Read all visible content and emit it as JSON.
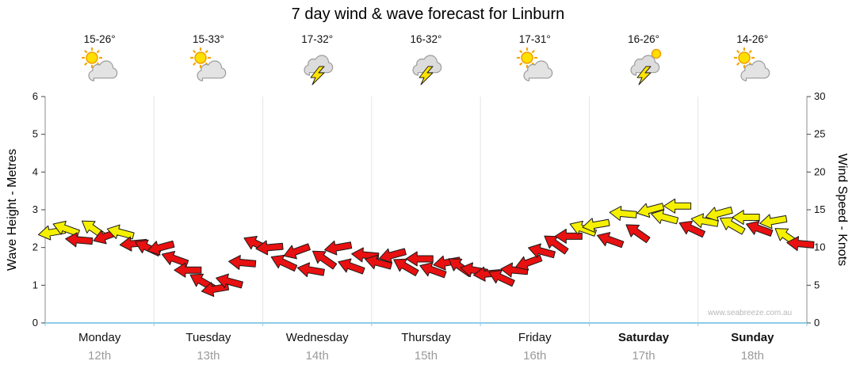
{
  "chart_data": {
    "type": "scatter",
    "marker": "wind-arrow",
    "title": "7 day wind & wave forecast for Linburn",
    "watermark": "www.seabreeze.com.au",
    "left_axis": {
      "label": "Wave Height - Metres",
      "min": 0,
      "max": 6,
      "ticks": [
        0,
        1,
        2,
        3,
        4,
        5,
        6
      ]
    },
    "right_axis": {
      "label": "Wind Speed - Knots",
      "min": 0,
      "max": 30,
      "ticks": [
        0,
        5,
        10,
        15,
        20,
        25,
        30
      ]
    },
    "baseline_color": "#8fcde8",
    "arrow_colors": {
      "y": "#f5f000",
      "r": "#e81010"
    },
    "days": [
      {
        "name": "Monday",
        "date": "12th",
        "temp": "15-26°",
        "icon": "sun-cloud",
        "bold": false
      },
      {
        "name": "Tuesday",
        "date": "13th",
        "temp": "15-33°",
        "icon": "sun-cloud",
        "bold": false
      },
      {
        "name": "Wednesday",
        "date": "14th",
        "temp": "17-32°",
        "icon": "storm",
        "bold": false
      },
      {
        "name": "Thursday",
        "date": "15th",
        "temp": "16-32°",
        "icon": "storm",
        "bold": false
      },
      {
        "name": "Friday",
        "date": "16th",
        "temp": "17-31°",
        "icon": "sun-cloud",
        "bold": false
      },
      {
        "name": "Saturday",
        "date": "17th",
        "temp": "16-26°",
        "icon": "sun-storm",
        "bold": true
      },
      {
        "name": "Sunday",
        "date": "18th",
        "temp": "14-26°",
        "icon": "sun-cloud",
        "bold": true
      }
    ],
    "point_format": [
      "day_index",
      "fraction_of_day",
      "wind_knots",
      "color_key",
      "arrow_angle_deg"
    ],
    "points": [
      [
        0,
        0.06,
        12,
        "y",
        170
      ],
      [
        0,
        0.19,
        12.5,
        "y",
        200
      ],
      [
        0,
        0.31,
        11,
        "r",
        185
      ],
      [
        0,
        0.44,
        12.5,
        "y",
        215
      ],
      [
        0,
        0.56,
        11.5,
        "r",
        160
      ],
      [
        0,
        0.69,
        12,
        "y",
        195
      ],
      [
        0,
        0.81,
        10.5,
        "r",
        175
      ],
      [
        0,
        0.94,
        10,
        "r",
        205
      ],
      [
        1,
        0.06,
        10,
        "r",
        165
      ],
      [
        1,
        0.19,
        8.5,
        "r",
        200
      ],
      [
        1,
        0.31,
        7,
        "r",
        180
      ],
      [
        1,
        0.44,
        5.5,
        "r",
        210
      ],
      [
        1,
        0.56,
        4.5,
        "r",
        170
      ],
      [
        1,
        0.69,
        5.5,
        "r",
        195
      ],
      [
        1,
        0.81,
        8,
        "r",
        185
      ],
      [
        1,
        0.94,
        10.5,
        "r",
        205
      ],
      [
        2,
        0.06,
        10,
        "r",
        175
      ],
      [
        2,
        0.19,
        8,
        "r",
        205
      ],
      [
        2,
        0.31,
        9.5,
        "r",
        160
      ],
      [
        2,
        0.44,
        7,
        "r",
        190
      ],
      [
        2,
        0.56,
        8.5,
        "r",
        215
      ],
      [
        2,
        0.69,
        10,
        "r",
        170
      ],
      [
        2,
        0.81,
        7.5,
        "r",
        200
      ],
      [
        2,
        0.94,
        9,
        "r",
        185
      ],
      [
        3,
        0.06,
        8,
        "r",
        195
      ],
      [
        3,
        0.19,
        9,
        "r",
        165
      ],
      [
        3,
        0.31,
        7.5,
        "r",
        210
      ],
      [
        3,
        0.44,
        8.5,
        "r",
        180
      ],
      [
        3,
        0.56,
        7,
        "r",
        200
      ],
      [
        3,
        0.69,
        8,
        "r",
        170
      ],
      [
        3,
        0.81,
        7.5,
        "r",
        215
      ],
      [
        3,
        0.94,
        7,
        "r",
        190
      ],
      [
        4,
        0.06,
        6.5,
        "r",
        175
      ],
      [
        4,
        0.19,
        6,
        "r",
        205
      ],
      [
        4,
        0.31,
        7,
        "r",
        185
      ],
      [
        4,
        0.44,
        8,
        "r",
        160
      ],
      [
        4,
        0.56,
        9.5,
        "r",
        195
      ],
      [
        4,
        0.69,
        10.5,
        "r",
        215
      ],
      [
        4,
        0.81,
        11.5,
        "r",
        180
      ],
      [
        4,
        0.94,
        12.5,
        "y",
        200
      ],
      [
        5,
        0.06,
        13,
        "y",
        170
      ],
      [
        5,
        0.19,
        11,
        "r",
        200
      ],
      [
        5,
        0.31,
        14.5,
        "y",
        185
      ],
      [
        5,
        0.44,
        12,
        "r",
        215
      ],
      [
        5,
        0.56,
        15,
        "y",
        165
      ],
      [
        5,
        0.69,
        14,
        "y",
        195
      ],
      [
        5,
        0.81,
        15.5,
        "y",
        180
      ],
      [
        5,
        0.94,
        12.5,
        "r",
        205
      ],
      [
        6,
        0.06,
        13.5,
        "y",
        190
      ],
      [
        6,
        0.19,
        14.5,
        "y",
        165
      ],
      [
        6,
        0.31,
        13,
        "y",
        210
      ],
      [
        6,
        0.44,
        14,
        "y",
        180
      ],
      [
        6,
        0.56,
        12.5,
        "r",
        200
      ],
      [
        6,
        0.69,
        13.5,
        "y",
        170
      ],
      [
        6,
        0.81,
        11.5,
        "y",
        215
      ],
      [
        6,
        0.94,
        10.5,
        "r",
        185
      ]
    ]
  }
}
